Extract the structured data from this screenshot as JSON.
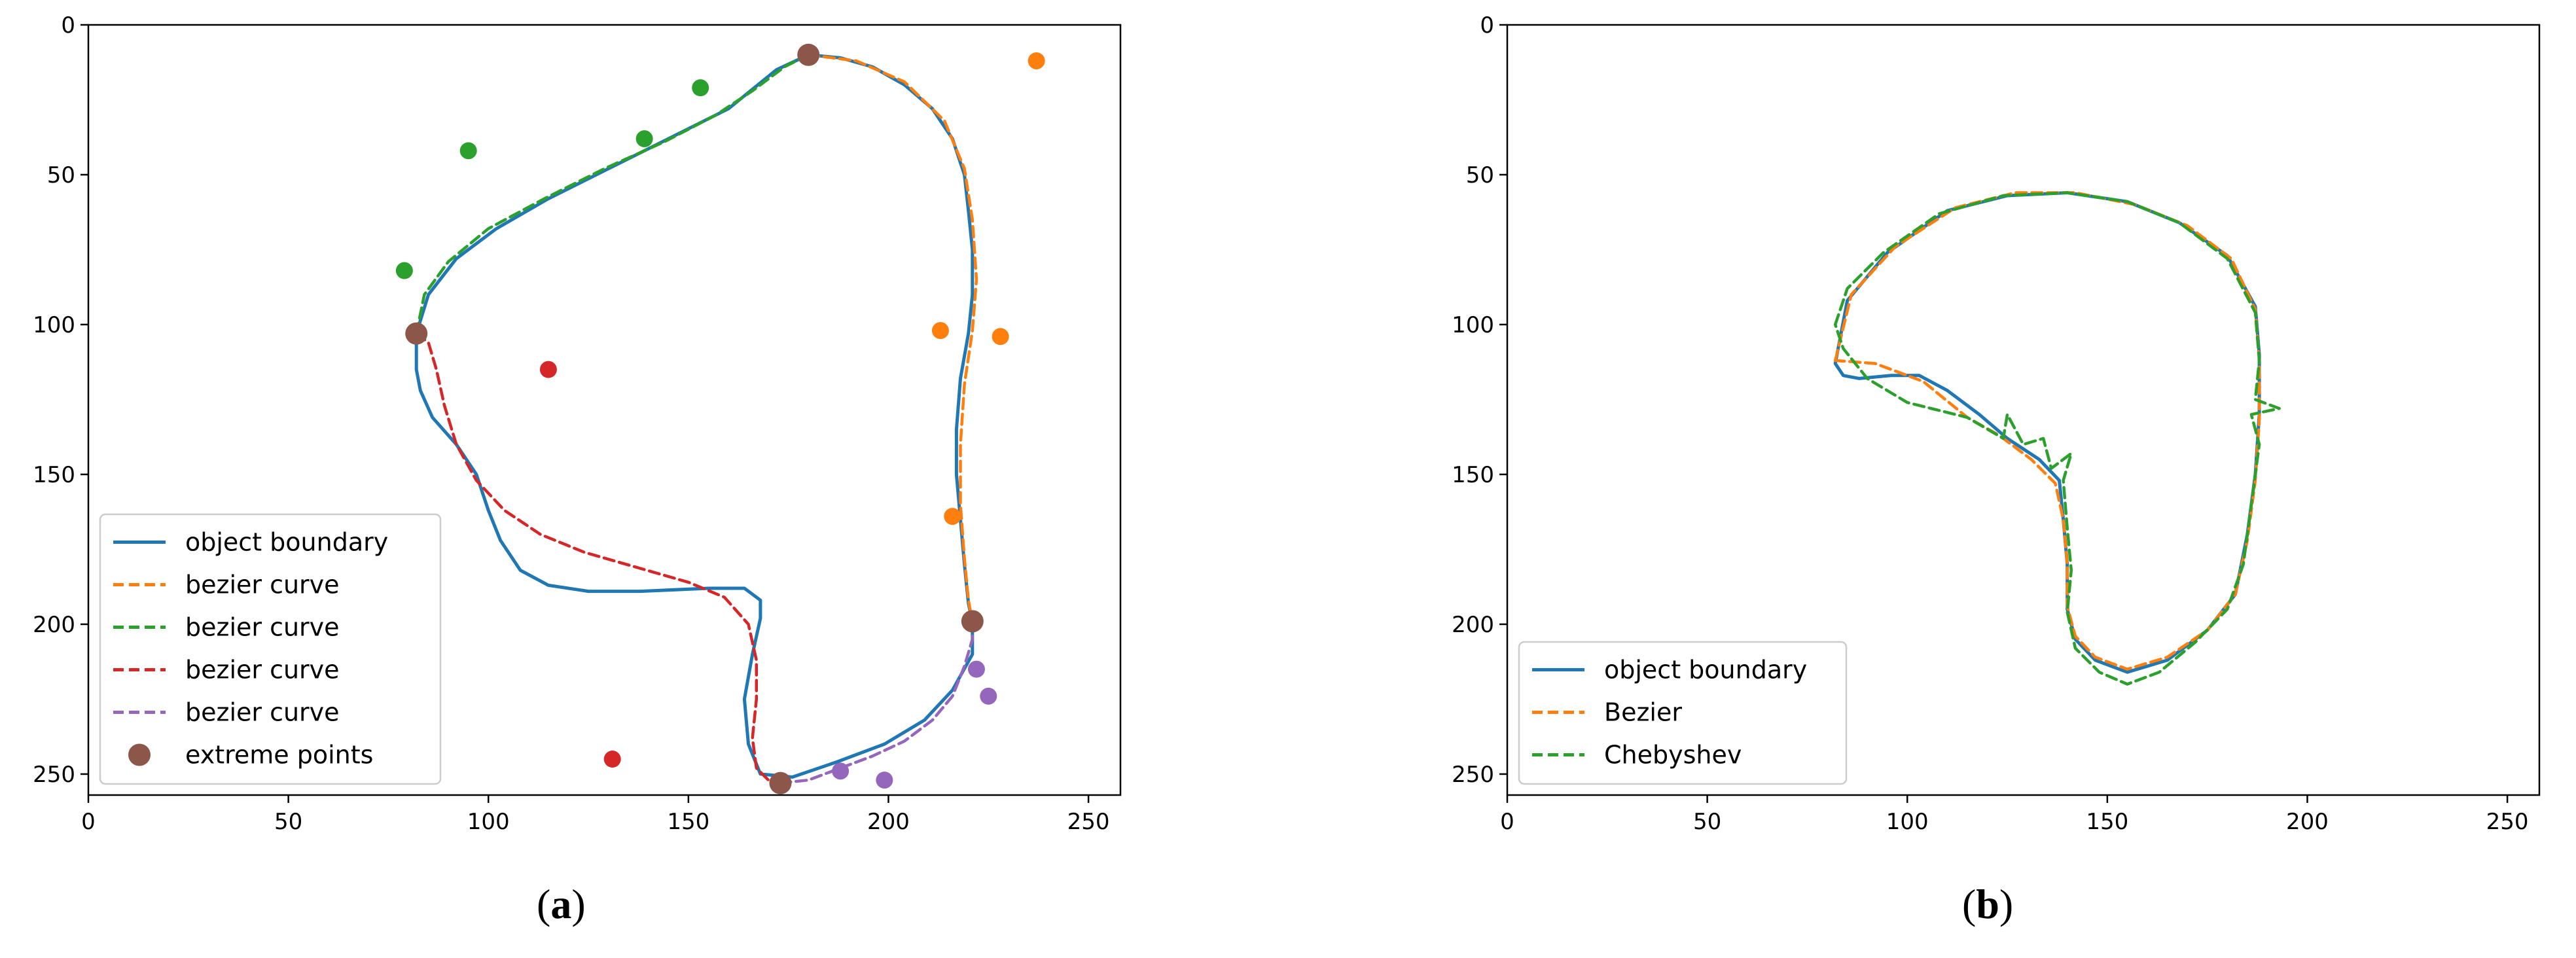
{
  "chart_data": [
    {
      "id": "a",
      "type": "line",
      "caption": "a",
      "title": "",
      "xlabel": "",
      "ylabel": "",
      "xlim": [
        0,
        258
      ],
      "ylim": [
        257,
        0
      ],
      "xticks": [
        0,
        50,
        100,
        150,
        200,
        250
      ],
      "yticks": [
        0,
        50,
        100,
        150,
        200,
        250
      ],
      "grid": false,
      "legend_position": "lower-left",
      "colors": {
        "blue": "#1f77b4",
        "orange": "#ff7f0e",
        "green": "#2ca02c",
        "red": "#d62728",
        "purple": "#9467bd",
        "brown": "#8c564b"
      },
      "series": [
        {
          "name": "object boundary",
          "style": "solid",
          "color": "#1f77b4",
          "points": [
            [
              180,
              10
            ],
            [
              188,
              11
            ],
            [
              196,
              14
            ],
            [
              204,
              20
            ],
            [
              211,
              28
            ],
            [
              216,
              38
            ],
            [
              219,
              50
            ],
            [
              220,
              62
            ],
            [
              221,
              75
            ],
            [
              221,
              90
            ],
            [
              220,
              103
            ],
            [
              218,
              118
            ],
            [
              217,
              135
            ],
            [
              217,
              150
            ],
            [
              218,
              165
            ],
            [
              219,
              180
            ],
            [
              220,
              193
            ],
            [
              221,
              199
            ],
            [
              221,
              210
            ],
            [
              216,
              222
            ],
            [
              209,
              232
            ],
            [
              199,
              240
            ],
            [
              187,
              246
            ],
            [
              176,
              251
            ],
            [
              168,
              250
            ],
            [
              165,
              240
            ],
            [
              164,
              225
            ],
            [
              166,
              210
            ],
            [
              168,
              198
            ],
            [
              168,
              192
            ],
            [
              164,
              188
            ],
            [
              155,
              188
            ],
            [
              138,
              189
            ],
            [
              125,
              189
            ],
            [
              115,
              187
            ],
            [
              108,
              182
            ],
            [
              103,
              172
            ],
            [
              100,
              162
            ],
            [
              97,
              150
            ],
            [
              92,
              140
            ],
            [
              86,
              131
            ],
            [
              83,
              122
            ],
            [
              82,
              115
            ],
            [
              82,
              103
            ],
            [
              85,
              90
            ],
            [
              92,
              78
            ],
            [
              102,
              68
            ],
            [
              115,
              58
            ],
            [
              130,
              48
            ],
            [
              145,
              38
            ],
            [
              160,
              28
            ],
            [
              172,
              15
            ],
            [
              180,
              10
            ]
          ]
        },
        {
          "name": "bezier curve",
          "style": "dashed",
          "color": "#ff7f0e",
          "points": [
            [
              180,
              10
            ],
            [
              192,
              12
            ],
            [
              204,
              19
            ],
            [
              214,
              32
            ],
            [
              219,
              48
            ],
            [
              221,
              65
            ],
            [
              222,
              85
            ],
            [
              221,
              102
            ],
            [
              219,
              120
            ],
            [
              218,
              140
            ],
            [
              218,
              160
            ],
            [
              219,
              178
            ],
            [
              220,
              192
            ],
            [
              221,
              199
            ]
          ]
        },
        {
          "name": "bezier curve",
          "style": "dashed",
          "color": "#2ca02c",
          "points": [
            [
              82,
              103
            ],
            [
              84,
              90
            ],
            [
              90,
              79
            ],
            [
              100,
              68
            ],
            [
              114,
              58
            ],
            [
              129,
              48
            ],
            [
              144,
              39
            ],
            [
              157,
              30
            ],
            [
              166,
              22
            ],
            [
              174,
              14
            ],
            [
              180,
              10
            ]
          ]
        },
        {
          "name": "bezier curve",
          "style": "dashed",
          "color": "#d62728",
          "points": [
            [
              82,
              103
            ],
            [
              85,
              106
            ],
            [
              87,
              115
            ],
            [
              89,
              127
            ],
            [
              92,
              140
            ],
            [
              97,
              152
            ],
            [
              104,
              162
            ],
            [
              113,
              170
            ],
            [
              124,
              176
            ],
            [
              137,
              181
            ],
            [
              150,
              186
            ],
            [
              159,
              191
            ],
            [
              165,
              200
            ],
            [
              167,
              212
            ],
            [
              167,
              225
            ],
            [
              166,
              238
            ],
            [
              167,
              248
            ],
            [
              170,
              252
            ],
            [
              173,
              253
            ]
          ]
        },
        {
          "name": "bezier curve",
          "style": "dashed",
          "color": "#9467bd",
          "points": [
            [
              173,
              253
            ],
            [
              180,
              252
            ],
            [
              188,
              248
            ],
            [
              196,
              244
            ],
            [
              204,
              239
            ],
            [
              211,
              232
            ],
            [
              216,
              224
            ],
            [
              219,
              214
            ],
            [
              221,
              205
            ],
            [
              221,
              199
            ]
          ]
        }
      ],
      "scatter": [
        {
          "color": "#ff7f0e",
          "points": [
            [
              237,
              12
            ],
            [
              213,
              102
            ],
            [
              228,
              104
            ],
            [
              216,
              164
            ]
          ]
        },
        {
          "color": "#2ca02c",
          "points": [
            [
              95,
              42
            ],
            [
              139,
              38
            ],
            [
              153,
              21
            ],
            [
              79,
              82
            ]
          ]
        },
        {
          "color": "#d62728",
          "points": [
            [
              115,
              115
            ],
            [
              131,
              245
            ]
          ]
        },
        {
          "color": "#9467bd",
          "points": [
            [
              222,
              215
            ],
            [
              225,
              224
            ],
            [
              188,
              249
            ],
            [
              199,
              252
            ]
          ]
        },
        {
          "name": "extreme points",
          "color": "#8c564b",
          "points": [
            [
              180,
              10
            ],
            [
              82,
              103
            ],
            [
              221,
              199
            ],
            [
              173,
              253
            ]
          ]
        }
      ]
    },
    {
      "id": "b",
      "type": "line",
      "caption": "b",
      "title": "",
      "xlabel": "",
      "ylabel": "",
      "xlim": [
        0,
        258
      ],
      "ylim": [
        257,
        0
      ],
      "xticks": [
        0,
        50,
        100,
        150,
        200,
        250
      ],
      "yticks": [
        0,
        50,
        100,
        150,
        200,
        250
      ],
      "grid": false,
      "legend_position": "lower-left",
      "series": [
        {
          "name": "object boundary",
          "style": "solid",
          "color": "#1f77b4",
          "points": [
            [
              82,
              113
            ],
            [
              85,
              92
            ],
            [
              95,
              76
            ],
            [
              110,
              62
            ],
            [
              125,
              57
            ],
            [
              140,
              56
            ],
            [
              155,
              59
            ],
            [
              168,
              66
            ],
            [
              180,
              77
            ],
            [
              187,
              94
            ],
            [
              188,
              110
            ],
            [
              188,
              130
            ],
            [
              187,
              150
            ],
            [
              185,
              170
            ],
            [
              182,
              190
            ],
            [
              175,
              202
            ],
            [
              165,
              212
            ],
            [
              155,
              216
            ],
            [
              147,
              212
            ],
            [
              142,
              205
            ],
            [
              140,
              195
            ],
            [
              140,
              180
            ],
            [
              139,
              165
            ],
            [
              138,
              152
            ],
            [
              133,
              145
            ],
            [
              125,
              138
            ],
            [
              118,
              130
            ],
            [
              110,
              122
            ],
            [
              103,
              117
            ],
            [
              96,
              117
            ],
            [
              88,
              118
            ],
            [
              84,
              117
            ],
            [
              82,
              113
            ]
          ]
        },
        {
          "name": "Bezier",
          "style": "dashed",
          "color": "#ff7f0e",
          "points": [
            [
              82,
              112
            ],
            [
              86,
              90
            ],
            [
              97,
              74
            ],
            [
              112,
              61
            ],
            [
              127,
              56
            ],
            [
              142,
              56
            ],
            [
              157,
              60
            ],
            [
              170,
              67
            ],
            [
              181,
              78
            ],
            [
              187,
              95
            ],
            [
              188,
              112
            ],
            [
              188,
              132
            ],
            [
              187,
              152
            ],
            [
              185,
              172
            ],
            [
              182,
              190
            ],
            [
              175,
              202
            ],
            [
              165,
              211
            ],
            [
              155,
              215
            ],
            [
              147,
              211
            ],
            [
              142,
              204
            ],
            [
              140,
              194
            ],
            [
              140,
              180
            ],
            [
              139,
              165
            ],
            [
              137,
              153
            ],
            [
              131,
              145
            ],
            [
              123,
              137
            ],
            [
              115,
              131
            ],
            [
              104,
              119
            ],
            [
              92,
              113
            ],
            [
              82,
              112
            ]
          ]
        },
        {
          "name": "Chebyshev",
          "style": "dashed",
          "color": "#2ca02c",
          "points": [
            [
              82,
              100
            ],
            [
              85,
              88
            ],
            [
              94,
              76
            ],
            [
              108,
              63
            ],
            [
              124,
              57
            ],
            [
              140,
              56
            ],
            [
              155,
              59
            ],
            [
              168,
              66
            ],
            [
              180,
              78
            ],
            [
              187,
              96
            ],
            [
              188,
              112
            ],
            [
              187,
              125
            ],
            [
              193,
              128
            ],
            [
              186,
              130
            ],
            [
              188,
              140
            ],
            [
              186,
              160
            ],
            [
              184,
              180
            ],
            [
              180,
              195
            ],
            [
              172,
              206
            ],
            [
              163,
              216
            ],
            [
              155,
              220
            ],
            [
              148,
              216
            ],
            [
              142,
              208
            ],
            [
              140,
              196
            ],
            [
              141,
              182
            ],
            [
              140,
              168
            ],
            [
              139,
              152
            ],
            [
              141,
              143
            ],
            [
              136,
              148
            ],
            [
              134,
              138
            ],
            [
              129,
              140
            ],
            [
              125,
              130
            ],
            [
              124,
              138
            ],
            [
              115,
              131
            ],
            [
              100,
              126
            ],
            [
              90,
              118
            ],
            [
              84,
              108
            ],
            [
              82,
              100
            ]
          ]
        }
      ]
    }
  ]
}
